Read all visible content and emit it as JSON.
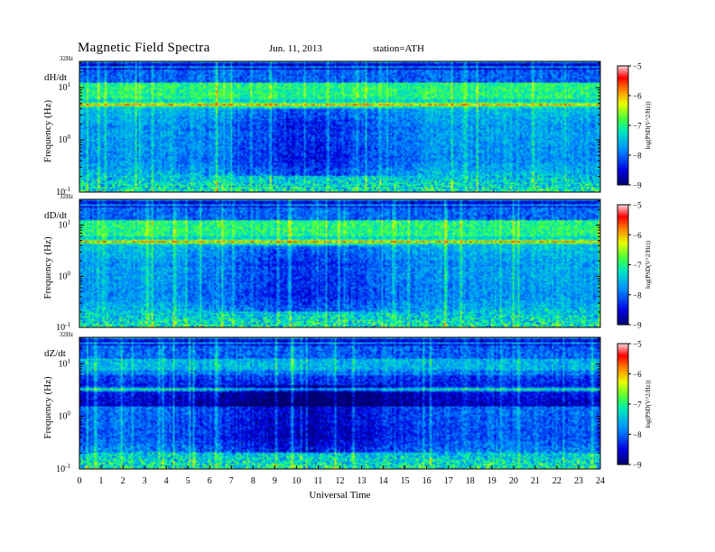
{
  "header": {
    "title": "Magnetic  Field  Spectra",
    "date": "Jun. 11, 2013",
    "station": "station=ATH"
  },
  "chart_data": [
    {
      "type": "heatmap",
      "panel_label": "dH/dt",
      "ylabel": "Frequency (Hz)",
      "top_label": "32Hz",
      "y_ticks": [
        "10^1",
        "10^0",
        "10^-1"
      ],
      "ylim_hz": [
        0.1,
        32
      ],
      "colorbar": {
        "label": "log(PSD(V^2/Hz))",
        "ticks": [
          -9,
          -8,
          -7,
          -6,
          -5
        ]
      },
      "features": {
        "line_freq_hz": 4.8,
        "event_hours": [
          6.3
        ]
      }
    },
    {
      "type": "heatmap",
      "panel_label": "dD/dt",
      "ylabel": "Frequency (Hz)",
      "top_label": "32Hz",
      "y_ticks": [
        "10^1",
        "10^0",
        "10^-1"
      ],
      "ylim_hz": [
        0.1,
        32
      ],
      "colorbar": {
        "label": "log(PSD(V^2/Hz))",
        "ticks": [
          -9,
          -8,
          -7,
          -6,
          -5
        ]
      },
      "features": {
        "line_freq_hz": 4.8,
        "event_hours": [
          9.7,
          16.9
        ]
      }
    },
    {
      "type": "heatmap",
      "panel_label": "dZ/dt",
      "ylabel": "Frequency (Hz)",
      "top_label": "32Hz",
      "y_ticks": [
        "10^1",
        "10^0",
        "10^-1"
      ],
      "ylim_hz": [
        0.1,
        32
      ],
      "colorbar": {
        "label": "log(PSD(V^2/Hz))",
        "ticks": [
          -9,
          -8,
          -7,
          -6,
          -5
        ]
      },
      "features": {
        "line_freq_hz": 3.3,
        "event_hours": [
          0.7,
          6.3,
          9.8
        ]
      }
    }
  ],
  "x_axis": {
    "xlabel": "Universal Time",
    "ticks": [
      "0",
      "1",
      "2",
      "3",
      "4",
      "5",
      "6",
      "7",
      "8",
      "9",
      "10",
      "11",
      "12",
      "13",
      "14",
      "15",
      "16",
      "17",
      "18",
      "19",
      "20",
      "21",
      "22",
      "23",
      "24"
    ],
    "xlim": [
      0,
      24
    ]
  }
}
